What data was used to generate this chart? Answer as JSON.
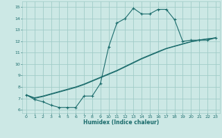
{
  "xlabel": "Humidex (Indice chaleur)",
  "bg_color": "#cce8e5",
  "grid_color": "#a0ccc8",
  "line_color": "#1a6b6b",
  "xlim": [
    -0.5,
    23.5
  ],
  "ylim": [
    5.7,
    15.5
  ],
  "xticks": [
    0,
    1,
    2,
    3,
    4,
    5,
    6,
    7,
    8,
    9,
    10,
    11,
    12,
    13,
    14,
    15,
    16,
    17,
    18,
    19,
    20,
    21,
    22,
    23
  ],
  "yticks": [
    6,
    7,
    8,
    9,
    10,
    11,
    12,
    13,
    14,
    15
  ],
  "line1_x": [
    0,
    1,
    2,
    3,
    4,
    5,
    6,
    7,
    8,
    9,
    10,
    11,
    12,
    13,
    14,
    15,
    16,
    17,
    18,
    19,
    20,
    21,
    22,
    23
  ],
  "line1_y": [
    7.3,
    6.9,
    6.7,
    6.4,
    6.2,
    6.2,
    6.2,
    7.2,
    7.2,
    8.3,
    11.5,
    13.6,
    14.0,
    14.9,
    14.4,
    14.4,
    14.8,
    14.8,
    13.9,
    12.0,
    12.1,
    12.1,
    12.1,
    12.3
  ],
  "line2_x": [
    0,
    1,
    2,
    3,
    4,
    5,
    6,
    7,
    8,
    9,
    10,
    11,
    12,
    13,
    14,
    15,
    16,
    17,
    18,
    19,
    20,
    21,
    22,
    23
  ],
  "line2_y": [
    7.3,
    7.0,
    7.15,
    7.35,
    7.55,
    7.75,
    7.95,
    8.2,
    8.5,
    8.8,
    9.1,
    9.4,
    9.75,
    10.1,
    10.45,
    10.75,
    11.05,
    11.35,
    11.55,
    11.75,
    11.95,
    12.1,
    12.2,
    12.3
  ],
  "line3_x": [
    0,
    1,
    2,
    3,
    4,
    5,
    6,
    7,
    8,
    9,
    10,
    11,
    12,
    13,
    14,
    15,
    16,
    17,
    18,
    19,
    20,
    21,
    22,
    23
  ],
  "line3_y": [
    7.3,
    7.05,
    7.2,
    7.4,
    7.6,
    7.8,
    8.0,
    8.25,
    8.55,
    8.85,
    9.15,
    9.45,
    9.8,
    10.15,
    10.5,
    10.8,
    11.1,
    11.38,
    11.58,
    11.78,
    11.98,
    12.12,
    12.22,
    12.3
  ]
}
